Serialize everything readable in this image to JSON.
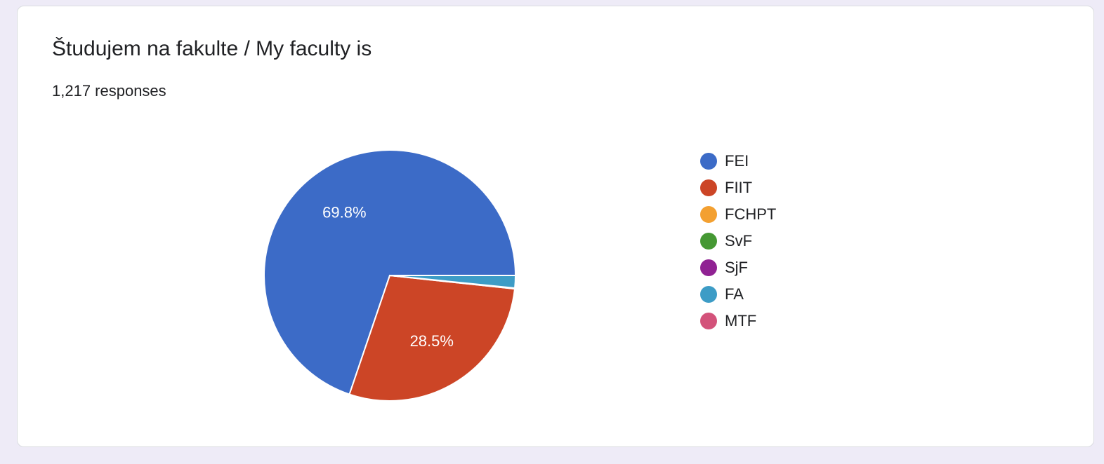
{
  "card": {
    "title": "Študujem na fakulte / My faculty is",
    "responses": "1,217 responses"
  },
  "chart_data": {
    "type": "pie",
    "total_responses": 1217,
    "categories": [
      "FEI",
      "FIIT",
      "FCHPT",
      "SvF",
      "SjF",
      "FA",
      "MTF"
    ],
    "values": [
      69.8,
      28.5,
      0.1,
      0,
      0,
      1.6,
      0
    ],
    "labels": [
      "69.8%",
      "28.5%",
      "",
      "",
      "",
      "",
      ""
    ],
    "colors": [
      "#3c6bc7",
      "#cc4526",
      "#f3a031",
      "#459833",
      "#902293",
      "#3d9cc6",
      "#d3527a"
    ],
    "legend_position": "right"
  }
}
